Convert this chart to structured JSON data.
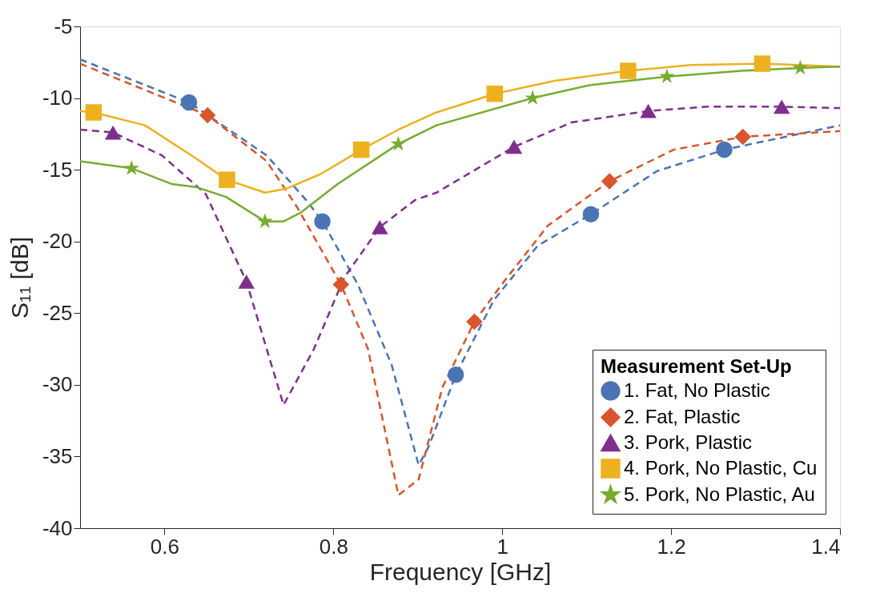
{
  "chart_data": {
    "type": "line",
    "xlabel": "Frequency [GHz]",
    "ylabel": "S₁₁ [dB]",
    "legend_title": "Measurement Set-Up",
    "xlim": [
      0.5,
      1.4
    ],
    "ylim": [
      -40,
      -5
    ],
    "xticks": [
      0.6,
      0.8,
      1,
      1.2,
      1.4
    ],
    "yticks": [
      -40,
      -35,
      -30,
      -25,
      -20,
      -15,
      -10,
      -5
    ],
    "legend": "bottom right",
    "grid": false,
    "series": [
      {
        "name": "1. Fat,   No Plastic",
        "type": "line",
        "line_style": "dashed",
        "color": "#4a74b4",
        "x": [
          0.5,
          0.629,
          0.721,
          0.769,
          0.787,
          0.829,
          0.869,
          0.901,
          0.913,
          0.945,
          0.99,
          1.042,
          1.105,
          1.183,
          1.263,
          1.4
        ],
        "values": [
          -7.3,
          -10.3,
          -14.0,
          -17.2,
          -18.6,
          -23.0,
          -28.6,
          -35.6,
          -34.3,
          -29.3,
          -24.1,
          -20.3,
          -18.1,
          -15.1,
          -13.6,
          -11.9
        ]
      },
      {
        "name": "2. Fat,   Plastic",
        "type": "line",
        "line_style": "dashed",
        "color": "#d9552b",
        "x": [
          0.5,
          0.651,
          0.721,
          0.757,
          0.809,
          0.841,
          0.877,
          0.901,
          0.929,
          0.967,
          1.002,
          1.054,
          1.127,
          1.203,
          1.285,
          1.4
        ],
        "values": [
          -7.6,
          -11.2,
          -14.4,
          -17.6,
          -23.0,
          -27.5,
          -37.7,
          -36.6,
          -30.2,
          -25.6,
          -22.8,
          -18.9,
          -15.8,
          -13.6,
          -12.7,
          -12.3
        ]
      },
      {
        "name": "3. Pork, Plastic",
        "type": "line",
        "line_style": "dashed",
        "color": "#7e2f8e",
        "x": [
          0.5,
          0.539,
          0.597,
          0.649,
          0.697,
          0.741,
          0.777,
          0.813,
          0.855,
          0.897,
          0.922,
          1.014,
          1.082,
          1.173,
          1.243,
          1.331,
          1.4
        ],
        "values": [
          -12.2,
          -12.4,
          -14.0,
          -16.7,
          -22.8,
          -31.4,
          -27.5,
          -22.5,
          -19.0,
          -17.1,
          -16.6,
          -13.4,
          -11.7,
          -10.9,
          -10.6,
          -10.6,
          -10.7
        ]
      },
      {
        "name": "4. Pork, No Plastic, Cu",
        "type": "line",
        "line_style": "solid",
        "color": "#edb120",
        "x": [
          0.5,
          0.516,
          0.577,
          0.637,
          0.674,
          0.719,
          0.745,
          0.785,
          0.833,
          0.877,
          0.922,
          0.991,
          1.062,
          1.149,
          1.223,
          1.308,
          1.4
        ],
        "values": [
          -10.9,
          -11.0,
          -11.9,
          -14.2,
          -15.7,
          -16.6,
          -16.3,
          -15.3,
          -13.6,
          -12.2,
          -11.0,
          -9.7,
          -8.8,
          -8.1,
          -7.7,
          -7.6,
          -7.8
        ]
      },
      {
        "name": "5. Pork, No Plastic, Au",
        "type": "line",
        "line_style": "solid",
        "color": "#77ac30",
        "x": [
          0.5,
          0.561,
          0.609,
          0.637,
          0.673,
          0.719,
          0.741,
          0.761,
          0.805,
          0.877,
          0.922,
          1.036,
          1.103,
          1.195,
          1.283,
          1.353,
          1.4
        ],
        "values": [
          -14.4,
          -14.9,
          -16.0,
          -16.2,
          -16.9,
          -18.6,
          -18.6,
          -18.0,
          -16.0,
          -13.2,
          -11.9,
          -10.0,
          -9.1,
          -8.5,
          -8.1,
          -7.9,
          -7.8
        ]
      },
      {
        "type": "scatter",
        "marker": "circle",
        "color": "#4a74b4",
        "x": [
          0.629,
          0.787,
          0.945,
          1.105,
          1.263
        ],
        "values": [
          -10.3,
          -18.6,
          -29.3,
          -18.1,
          -13.6
        ]
      },
      {
        "type": "scatter",
        "marker": "diamond",
        "color": "#d9552b",
        "x": [
          0.651,
          0.809,
          0.967,
          1.127,
          1.285
        ],
        "values": [
          -11.2,
          -23.0,
          -25.6,
          -15.8,
          -12.7
        ]
      },
      {
        "type": "scatter",
        "marker": "triangle",
        "color": "#7e2f8e",
        "x": [
          0.539,
          0.697,
          0.855,
          1.014,
          1.173,
          1.331
        ],
        "values": [
          -12.4,
          -22.8,
          -19.0,
          -13.4,
          -10.9,
          -10.6
        ]
      },
      {
        "type": "scatter",
        "marker": "square",
        "color": "#edb120",
        "x": [
          0.516,
          0.674,
          0.833,
          0.991,
          1.149,
          1.308
        ],
        "values": [
          -11.0,
          -15.7,
          -13.6,
          -9.7,
          -8.1,
          -7.6
        ]
      },
      {
        "type": "scatter",
        "marker": "star",
        "color": "#77ac30",
        "x": [
          0.561,
          0.719,
          0.877,
          1.036,
          1.195,
          1.353
        ],
        "values": [
          -14.9,
          -18.6,
          -13.2,
          -10.0,
          -8.5,
          -7.9
        ]
      }
    ]
  }
}
